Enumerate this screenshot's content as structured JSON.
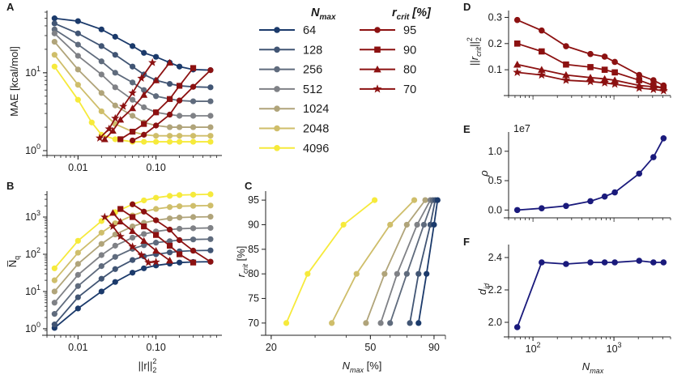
{
  "colors": {
    "N": [
      "#1b3a6b",
      "#415574",
      "#5f6b7d",
      "#7f8186",
      "#b0a47a",
      "#cfbe6a",
      "#f6ea3b"
    ],
    "r": "#8c1111",
    "navy": "#1a1a7c"
  },
  "legend": {
    "n_title": "N",
    "n_title_sub": "max",
    "r_title": "r",
    "r_title_sub": "crit",
    "r_title_tail": " [%]",
    "n_entries": [
      "64",
      "128",
      "256",
      "512",
      "1024",
      "2048",
      "4096"
    ],
    "r_entries": [
      "95",
      "90",
      "80",
      "70"
    ],
    "r_markers": [
      "circle",
      "square",
      "triangle",
      "star"
    ]
  },
  "chart_data": [
    {
      "panel": "A",
      "type": "line",
      "xscale": "log",
      "yscale": "log",
      "xlim": [
        0.004,
        0.7
      ],
      "ylim": [
        1.0,
        60
      ],
      "x_ticks": [
        {
          "v": 0.01,
          "label": "0.01"
        },
        {
          "v": 0.1,
          "label": "0.10"
        }
      ],
      "y_ticks": [
        {
          "v": 1,
          "label": "10",
          "sup": "0"
        },
        {
          "v": 10,
          "label": "10",
          "sup": "1"
        }
      ],
      "xlabel": "",
      "ylabel": "MAE [kcal/mol]",
      "series": [
        {
          "name": "64",
          "x": [
            0.005,
            0.01,
            0.02,
            0.03,
            0.05,
            0.07,
            0.1,
            0.15,
            0.2,
            0.3,
            0.5
          ],
          "y": [
            50,
            46,
            36,
            29,
            22,
            18,
            16,
            13.5,
            12,
            11,
            10.8
          ]
        },
        {
          "name": "128",
          "x": [
            0.005,
            0.01,
            0.02,
            0.03,
            0.05,
            0.07,
            0.1,
            0.15,
            0.2,
            0.3,
            0.5
          ],
          "y": [
            43,
            32,
            22,
            17,
            12,
            9.5,
            8,
            7.2,
            6.8,
            6.6,
            6.5
          ]
        },
        {
          "name": "256",
          "x": [
            0.005,
            0.01,
            0.02,
            0.03,
            0.05,
            0.07,
            0.1,
            0.15,
            0.2,
            0.3,
            0.5
          ],
          "y": [
            36,
            23,
            14,
            10,
            7.5,
            6,
            5,
            4.6,
            4.4,
            4.3,
            4.3
          ]
        },
        {
          "name": "512",
          "x": [
            0.005,
            0.01,
            0.02,
            0.03,
            0.05,
            0.07,
            0.1,
            0.15,
            0.2,
            0.3,
            0.5
          ],
          "y": [
            32,
            16.5,
            9.5,
            6.5,
            4.5,
            3.6,
            3.1,
            2.9,
            2.8,
            2.8,
            2.8
          ]
        },
        {
          "name": "1024",
          "x": [
            0.005,
            0.01,
            0.02,
            0.03,
            0.05,
            0.07,
            0.1,
            0.15,
            0.2,
            0.3,
            0.5
          ],
          "y": [
            25,
            11,
            5.5,
            3.8,
            2.8,
            2.3,
            2.1,
            2.0,
            2.0,
            2.0,
            2.0
          ]
        },
        {
          "name": "2048",
          "x": [
            0.005,
            0.01,
            0.02,
            0.03,
            0.05,
            0.07,
            0.1,
            0.15,
            0.2,
            0.3,
            0.5
          ],
          "y": [
            17,
            7,
            3.2,
            2.2,
            1.75,
            1.6,
            1.55,
            1.55,
            1.55,
            1.55,
            1.55
          ]
        },
        {
          "name": "4096",
          "x": [
            0.005,
            0.01,
            0.015,
            0.02,
            0.03,
            0.05,
            0.07,
            0.1,
            0.15,
            0.2,
            0.3,
            0.5
          ],
          "y": [
            12,
            4.5,
            2.3,
            1.6,
            1.4,
            1.3,
            1.3,
            1.3,
            1.3,
            1.3,
            1.3,
            1.3
          ]
        }
      ],
      "r_series": [
        {
          "name": "95",
          "marker": "circle",
          "x": [
            0.5,
            0.3,
            0.2,
            0.15,
            0.1,
            0.07,
            0.05
          ],
          "y": [
            10.8,
            6.6,
            4.4,
            2.9,
            2.1,
            1.6,
            1.35
          ]
        },
        {
          "name": "90",
          "marker": "square",
          "x": [
            0.3,
            0.2,
            0.15,
            0.1,
            0.07,
            0.05,
            0.035
          ],
          "y": [
            11.5,
            6.8,
            4.6,
            3.1,
            2.2,
            1.75,
            1.4
          ]
        },
        {
          "name": "80",
          "marker": "triangle",
          "x": [
            0.15,
            0.1,
            0.07,
            0.05,
            0.035,
            0.028,
            0.022
          ],
          "y": [
            13.5,
            8,
            5.2,
            3.5,
            2.5,
            1.8,
            1.4
          ]
        },
        {
          "name": "70",
          "marker": "star",
          "x": [
            0.09,
            0.065,
            0.05,
            0.038,
            0.03,
            0.025,
            0.019
          ],
          "y": [
            13.5,
            8.5,
            5.5,
            3.7,
            2.6,
            1.9,
            1.45
          ]
        }
      ]
    },
    {
      "panel": "B",
      "type": "line",
      "xscale": "log",
      "yscale": "log",
      "xlim": [
        0.004,
        0.7
      ],
      "ylim": [
        0.9,
        4500
      ],
      "x_ticks": [
        {
          "v": 0.01,
          "label": "0.01"
        },
        {
          "v": 0.1,
          "label": "0.10"
        }
      ],
      "y_ticks": [
        {
          "v": 1,
          "label": "10",
          "sup": "0"
        },
        {
          "v": 10,
          "label": "10",
          "sup": "1"
        },
        {
          "v": 100,
          "label": "10",
          "sup": "2"
        },
        {
          "v": 1000,
          "label": "10",
          "sup": "3"
        }
      ],
      "xlabel": "||r||",
      "xlabel_sup": "2",
      "xlabel_sub": "2",
      "ylabel": "N̅",
      "ylabel_sub": "q",
      "series": [
        {
          "name": "64",
          "x": [
            0.005,
            0.01,
            0.02,
            0.03,
            0.05,
            0.07,
            0.1,
            0.15,
            0.2,
            0.3,
            0.5
          ],
          "y": [
            1.05,
            3.5,
            10,
            18,
            32,
            42,
            50,
            56,
            60,
            62,
            63
          ]
        },
        {
          "name": "128",
          "x": [
            0.005,
            0.01,
            0.02,
            0.03,
            0.05,
            0.07,
            0.1,
            0.15,
            0.2,
            0.3,
            0.5
          ],
          "y": [
            1.3,
            7,
            22,
            40,
            70,
            88,
            100,
            112,
            120,
            125,
            127
          ]
        },
        {
          "name": "256",
          "x": [
            0.005,
            0.01,
            0.02,
            0.03,
            0.05,
            0.07,
            0.1,
            0.15,
            0.2,
            0.3,
            0.5
          ],
          "y": [
            2.5,
            14,
            48,
            85,
            140,
            175,
            205,
            225,
            240,
            250,
            255
          ]
        },
        {
          "name": "512",
          "x": [
            0.005,
            0.01,
            0.02,
            0.03,
            0.05,
            0.07,
            0.1,
            0.15,
            0.2,
            0.3,
            0.5
          ],
          "y": [
            5,
            28,
            95,
            170,
            280,
            350,
            410,
            460,
            485,
            500,
            510
          ]
        },
        {
          "name": "1024",
          "x": [
            0.005,
            0.01,
            0.02,
            0.03,
            0.05,
            0.07,
            0.1,
            0.15,
            0.2,
            0.3,
            0.5
          ],
          "y": [
            10,
            55,
            190,
            340,
            560,
            700,
            820,
            920,
            970,
            1000,
            1020
          ]
        },
        {
          "name": "2048",
          "x": [
            0.005,
            0.01,
            0.02,
            0.03,
            0.05,
            0.07,
            0.1,
            0.15,
            0.2,
            0.3,
            0.5
          ],
          "y": [
            20,
            110,
            380,
            680,
            1100,
            1400,
            1650,
            1850,
            1950,
            2000,
            2040
          ]
        },
        {
          "name": "4096",
          "x": [
            0.005,
            0.01,
            0.02,
            0.03,
            0.05,
            0.07,
            0.1,
            0.15,
            0.2,
            0.3,
            0.5
          ],
          "y": [
            42,
            230,
            780,
            1350,
            2200,
            2800,
            3300,
            3700,
            3900,
            4000,
            4090
          ]
        }
      ],
      "r_series": [
        {
          "name": "95",
          "marker": "circle",
          "x": [
            0.05,
            0.07,
            0.1,
            0.15,
            0.2,
            0.3,
            0.5
          ],
          "y": [
            2200,
            1400,
            820,
            460,
            240,
            125,
            63
          ]
        },
        {
          "name": "90",
          "marker": "square",
          "x": [
            0.035,
            0.05,
            0.07,
            0.1,
            0.15,
            0.2,
            0.3
          ],
          "y": [
            1650,
            1000,
            560,
            330,
            170,
            100,
            60
          ]
        },
        {
          "name": "80",
          "marker": "triangle",
          "x": [
            0.028,
            0.035,
            0.05,
            0.07,
            0.1,
            0.15,
            0.15
          ],
          "y": [
            1300,
            760,
            420,
            230,
            125,
            68,
            68
          ]
        },
        {
          "name": "70",
          "marker": "star",
          "x": [
            0.022,
            0.028,
            0.035,
            0.05,
            0.065,
            0.08,
            0.1
          ],
          "y": [
            1000,
            560,
            300,
            160,
            95,
            60,
            62
          ]
        }
      ]
    },
    {
      "panel": "C",
      "type": "line",
      "xscale": "log",
      "yscale": "linear",
      "xlim": [
        19,
        100
      ],
      "ylim": [
        68.5,
        96.5
      ],
      "x_ticks": [
        {
          "v": 20,
          "label": "20"
        },
        {
          "v": 50,
          "label": "50"
        },
        {
          "v": 90,
          "label": "90"
        }
      ],
      "y_ticks": [
        {
          "v": 70,
          "label": "70"
        },
        {
          "v": 75,
          "label": "75"
        },
        {
          "v": 80,
          "label": "80"
        },
        {
          "v": 85,
          "label": "85"
        },
        {
          "v": 90,
          "label": "90"
        },
        {
          "v": 95,
          "label": "95"
        }
      ],
      "xlabel": "N",
      "xlabel_sub": "max",
      "xlabel_tail": " [%]",
      "ylabel": "r",
      "ylabel_sub": "crit",
      "ylabel_tail": " [%]",
      "series": [
        {
          "name": "4096",
          "x": [
            23,
            28,
            39,
            52
          ],
          "y": [
            70,
            80,
            90,
            95
          ]
        },
        {
          "name": "2048",
          "x": [
            35,
            44,
            60,
            75
          ],
          "y": [
            70,
            80,
            90,
            95
          ]
        },
        {
          "name": "1024",
          "x": [
            48,
            57,
            70,
            83
          ],
          "y": [
            70,
            80,
            90,
            95
          ]
        },
        {
          "name": "512",
          "x": [
            55,
            64,
            77,
            87
          ],
          "y": [
            70,
            80,
            90,
            95
          ]
        },
        {
          "name": "256",
          "x": [
            60,
            70,
            82,
            89
          ],
          "y": [
            70,
            80,
            90,
            95
          ]
        },
        {
          "name": "128",
          "x": [
            72,
            78,
            87,
            91
          ],
          "y": [
            70,
            80,
            90,
            95
          ]
        },
        {
          "name": "64",
          "x": [
            78,
            84,
            90,
            93
          ],
          "y": [
            70,
            80,
            90,
            95
          ]
        }
      ]
    },
    {
      "panel": "D",
      "type": "line",
      "xscale": "log",
      "yscale": "linear",
      "xlim": [
        50,
        5000
      ],
      "ylim": [
        0.02,
        0.32
      ],
      "x_ticks": [],
      "y_ticks": [
        {
          "v": 0.1,
          "label": "0.1"
        },
        {
          "v": 0.2,
          "label": "0.2"
        },
        {
          "v": 0.3,
          "label": "0.3"
        }
      ],
      "ylabel": "||r",
      "ylabel_sub": "crit",
      "ylabel_tail": "||",
      "ylabel_sup2": "2",
      "ylabel_sub2": "2",
      "series": [
        {
          "name": "95",
          "marker": "circle",
          "x": [
            64,
            128,
            256,
            512,
            768,
            1024,
            2048,
            3072,
            4096
          ],
          "y": [
            0.29,
            0.25,
            0.19,
            0.16,
            0.15,
            0.13,
            0.08,
            0.06,
            0.04
          ]
        },
        {
          "name": "90",
          "marker": "square",
          "x": [
            64,
            128,
            256,
            512,
            768,
            1024,
            2048,
            3072,
            4096
          ],
          "y": [
            0.2,
            0.17,
            0.12,
            0.11,
            0.1,
            0.09,
            0.06,
            0.04,
            0.03
          ]
        },
        {
          "name": "80",
          "marker": "triangle",
          "x": [
            64,
            128,
            256,
            512,
            768,
            1024,
            2048,
            3072,
            4096
          ],
          "y": [
            0.12,
            0.1,
            0.08,
            0.07,
            0.065,
            0.06,
            0.04,
            0.035,
            0.03
          ]
        },
        {
          "name": "70",
          "marker": "star",
          "x": [
            64,
            128,
            256,
            512,
            768,
            1024,
            2048,
            3072,
            4096
          ],
          "y": [
            0.09,
            0.08,
            0.06,
            0.055,
            0.05,
            0.045,
            0.03,
            0.025,
            0.02
          ]
        }
      ]
    },
    {
      "panel": "E",
      "type": "line",
      "xscale": "log",
      "yscale": "linear",
      "xlim": [
        50,
        5000
      ],
      "ylim": [
        -0.05,
        1.3
      ],
      "x_ticks": [],
      "y_ticks": [
        {
          "v": 0.0,
          "label": "0.0"
        },
        {
          "v": 0.5,
          "label": "0.5"
        },
        {
          "v": 1.0,
          "label": "1.0"
        }
      ],
      "ylabel": "ρ",
      "offset_label": "1e7",
      "series": [
        {
          "name": "rho",
          "x": [
            64,
            128,
            256,
            512,
            768,
            1024,
            2048,
            3072,
            4096
          ],
          "y": [
            0.0,
            0.03,
            0.07,
            0.15,
            0.23,
            0.3,
            0.62,
            0.9,
            1.22
          ]
        }
      ]
    },
    {
      "panel": "F",
      "type": "line",
      "xscale": "log",
      "yscale": "linear",
      "xlim": [
        50,
        5000
      ],
      "ylim": [
        1.94,
        2.47
      ],
      "x_ticks": [
        {
          "v": 100,
          "label": "10",
          "sup": "2"
        },
        {
          "v": 1000,
          "label": "10",
          "sup": "3"
        }
      ],
      "y_ticks": [
        {
          "v": 2.0,
          "label": "2.0"
        },
        {
          "v": 2.2,
          "label": "2.2"
        },
        {
          "v": 2.4,
          "label": "2.4"
        }
      ],
      "xlabel": "N",
      "xlabel_sub": "max",
      "ylabel": "d",
      "ylabel_sub": "id",
      "series": [
        {
          "name": "did",
          "x": [
            64,
            128,
            256,
            512,
            768,
            1024,
            2048,
            3072,
            4096
          ],
          "y": [
            1.97,
            2.37,
            2.36,
            2.37,
            2.37,
            2.37,
            2.38,
            2.37,
            2.37
          ]
        }
      ]
    }
  ]
}
